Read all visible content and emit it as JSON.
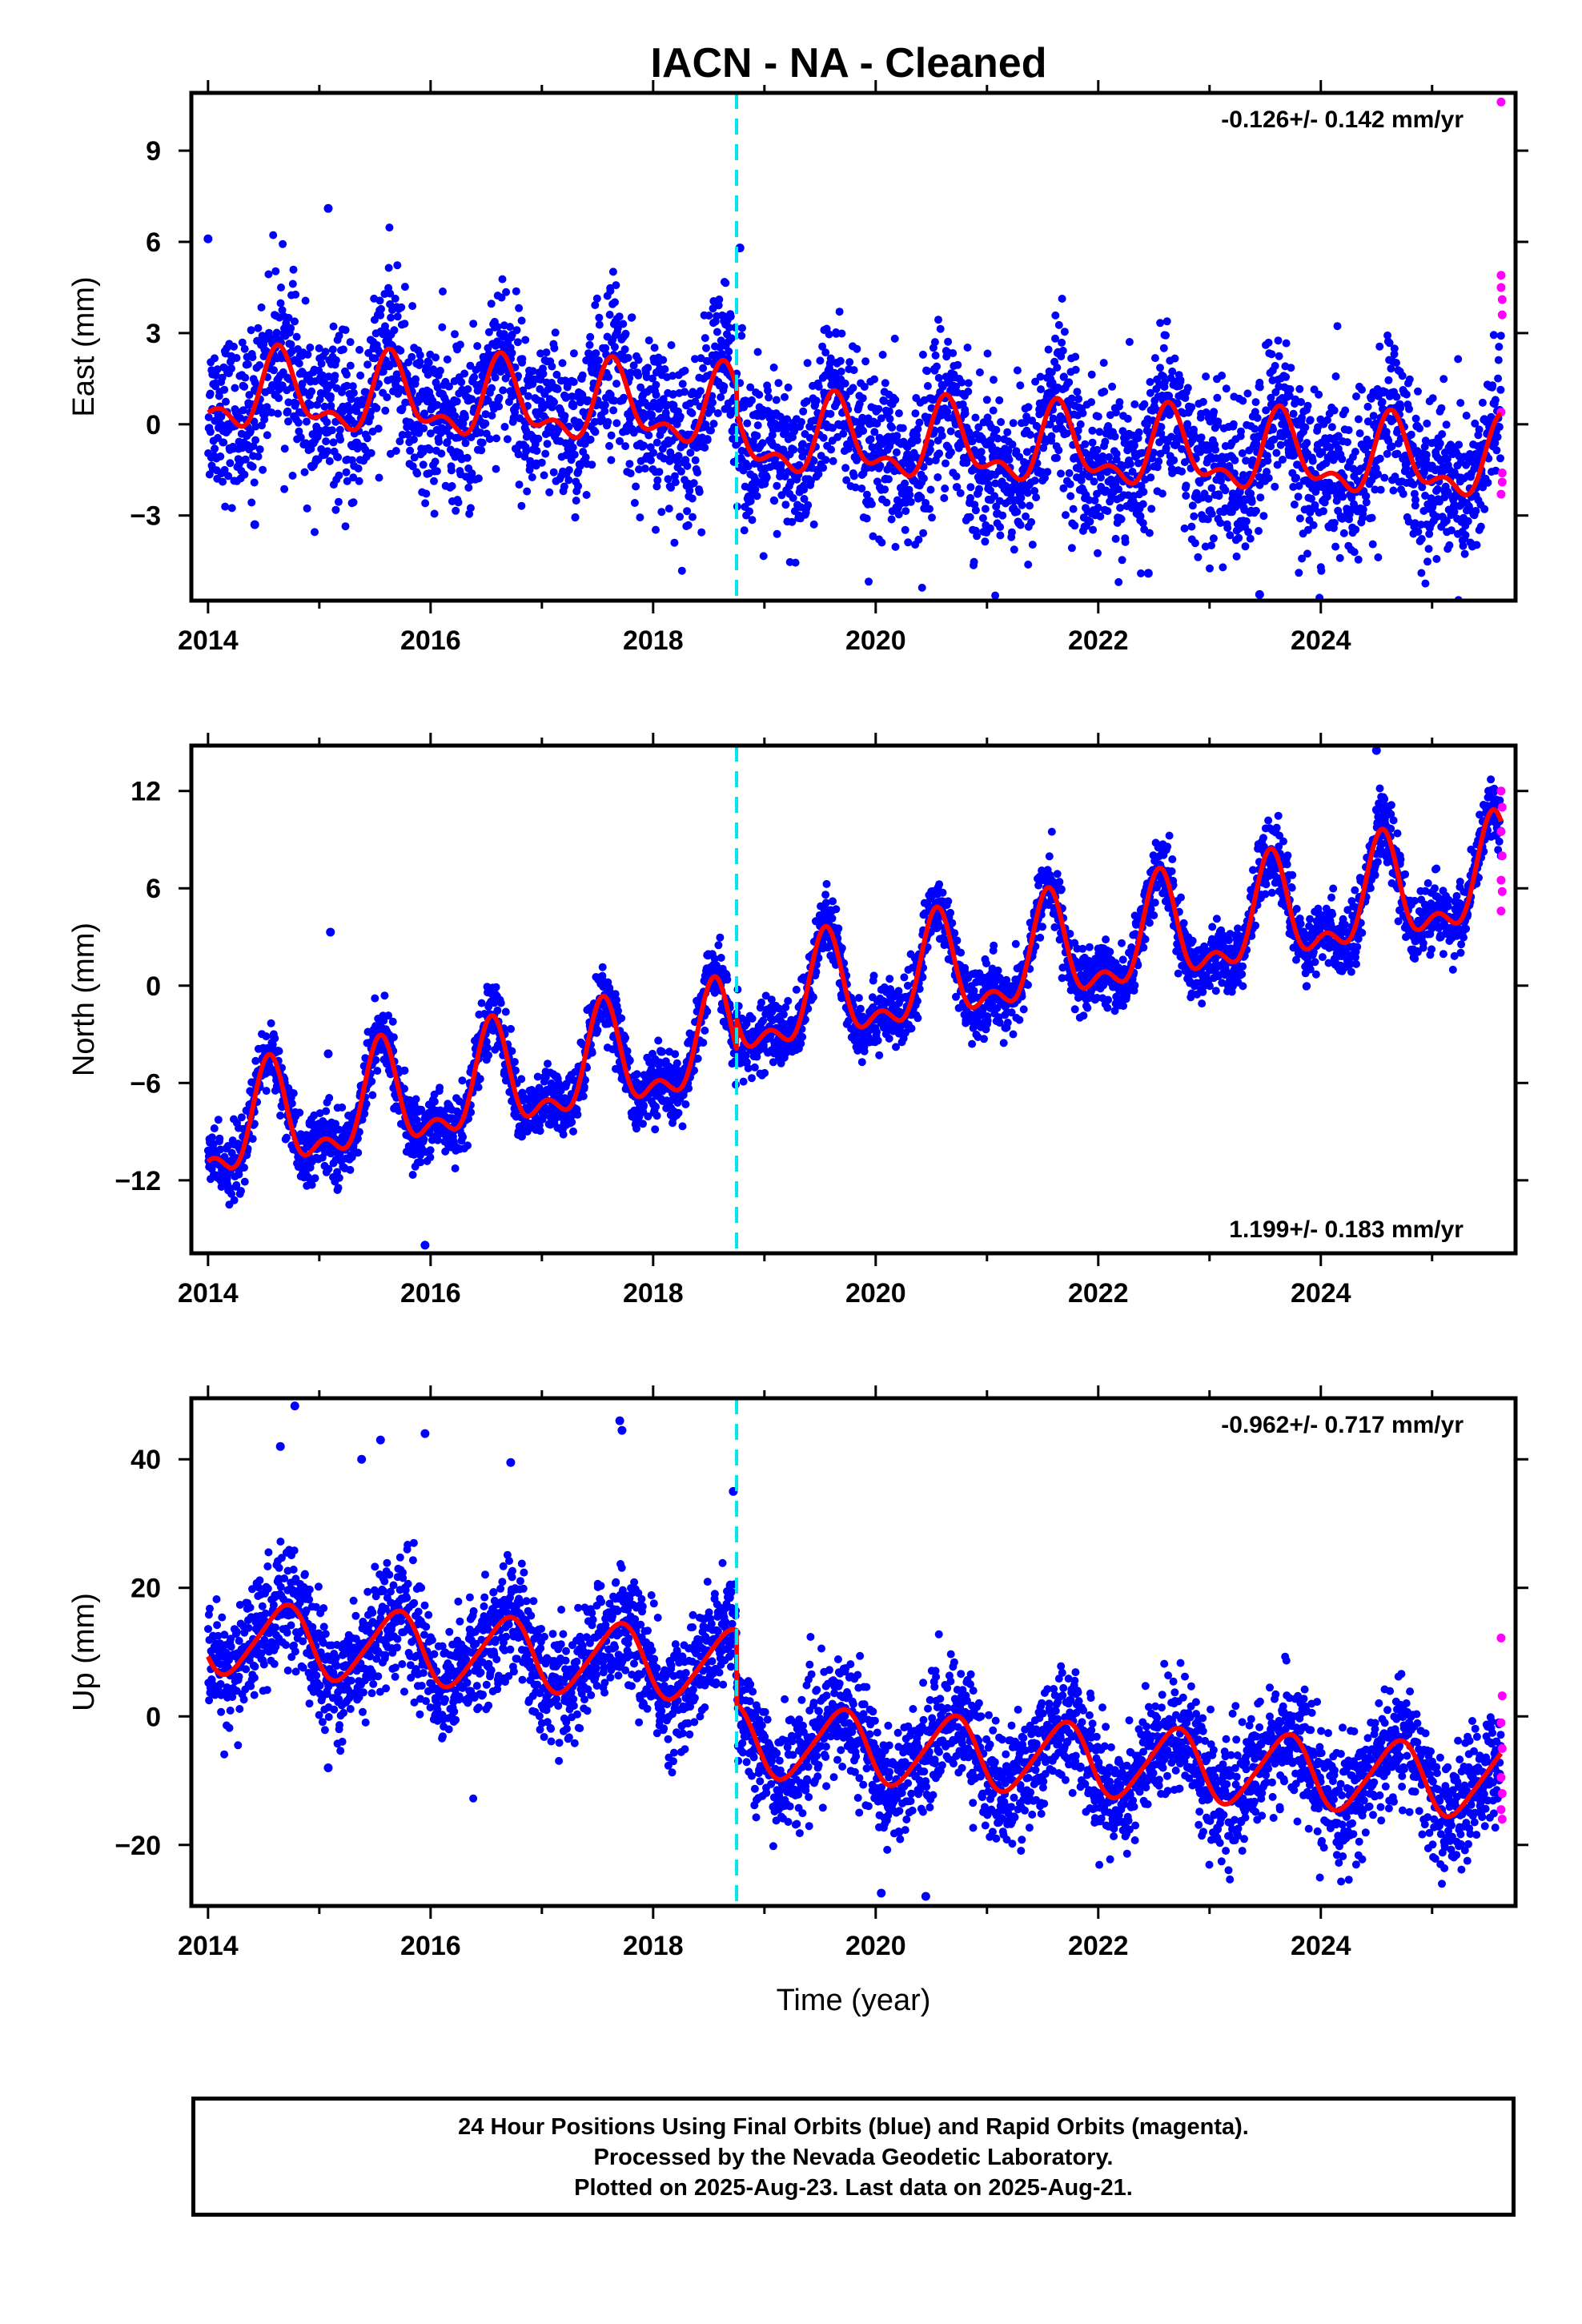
{
  "title": "IACN  - NA - Cleaned",
  "footer": {
    "line1": "24 Hour Positions Using Final Orbits (blue) and Rapid Orbits (magenta).",
    "line2": "Processed by the Nevada Geodetic Laboratory.",
    "line3": "Plotted on 2025-Aug-23. Last data on 2025-Aug-21."
  },
  "colors": {
    "final_orbits": "#0000ff",
    "rapid_orbits": "#ff00ff",
    "model_fit": "#ff0000",
    "event_line": "#00e5ee"
  },
  "chart_data": [
    {
      "type": "scatter",
      "component": "east",
      "ylabel": "East (mm)",
      "xlabel": "",
      "xlim": [
        2013.85,
        2025.75
      ],
      "ylim": [
        -5.8,
        10.9
      ],
      "x_ticks": [
        2014,
        2016,
        2018,
        2020,
        2022,
        2024
      ],
      "y_ticks": [
        -3,
        0,
        3,
        6,
        9
      ],
      "rate_label": "-0.126+/- 0.142 mm/yr",
      "rate_label_position": "top-right",
      "event_line_x": 2018.75,
      "model": {
        "segments": [
          {
            "start": 2014.0,
            "end": 2018.75,
            "offset": 1.0
          },
          {
            "start": 2018.75,
            "end": 2025.62,
            "offset": 0.13
          }
        ],
        "rate_mm_per_yr": -0.126,
        "annual_amplitude": 1.1,
        "annual_peak": 0.65,
        "semiannual_amplitude": 0.6,
        "semiannual_peak": 0.62
      },
      "scatter": {
        "noise": 1.3,
        "points_per_year": 340
      },
      "outliers": [
        {
          "x": 2014.0,
          "y": 6.1
        },
        {
          "x": 2015.08,
          "y": 7.1
        },
        {
          "x": 2018.78,
          "y": 5.8
        },
        {
          "x": 2014.42,
          "y": -3.3
        },
        {
          "x": 2022.45,
          "y": -4.9
        },
        {
          "x": 2023.45,
          "y": -5.6
        }
      ],
      "rapid_points": [
        {
          "x": 2025.62,
          "y": 10.6
        },
        {
          "x": 2025.62,
          "y": 4.9
        },
        {
          "x": 2025.62,
          "y": 4.5
        },
        {
          "x": 2025.63,
          "y": 4.1
        },
        {
          "x": 2025.63,
          "y": 3.6
        },
        {
          "x": 2025.62,
          "y": 0.4
        },
        {
          "x": 2025.63,
          "y": -1.6
        },
        {
          "x": 2025.62,
          "y": -2.3
        },
        {
          "x": 2025.63,
          "y": -1.9
        }
      ]
    },
    {
      "type": "scatter",
      "component": "north",
      "ylabel": "North (mm)",
      "xlabel": "",
      "xlim": [
        2013.85,
        2025.75
      ],
      "ylim": [
        -16.5,
        14.8
      ],
      "x_ticks": [
        2014,
        2016,
        2018,
        2020,
        2022,
        2024
      ],
      "y_ticks": [
        -12,
        -6,
        0,
        6,
        12
      ],
      "rate_label": "1.199+/- 0.183 mm/yr",
      "rate_label_position": "bottom-right",
      "event_line_x": 2018.75,
      "model": {
        "segments": [
          {
            "start": 2014.0,
            "end": 2018.75,
            "offset": -9.3
          },
          {
            "start": 2018.75,
            "end": 2025.62,
            "offset": -7.4
          }
        ],
        "rate_mm_per_yr": 1.199,
        "annual_amplitude": 2.9,
        "annual_peak": 0.55,
        "semiannual_amplitude": 1.5,
        "semiannual_peak": 0.55
      },
      "scatter": {
        "noise": 1.0,
        "points_per_year": 340
      },
      "outliers": [
        {
          "x": 2015.1,
          "y": 3.3
        },
        {
          "x": 2015.08,
          "y": -4.2
        },
        {
          "x": 2024.5,
          "y": 14.5
        },
        {
          "x": 2015.95,
          "y": -16.0
        }
      ],
      "rapid_points": [
        {
          "x": 2025.62,
          "y": 12.0
        },
        {
          "x": 2025.63,
          "y": 11.0
        },
        {
          "x": 2025.62,
          "y": 9.5
        },
        {
          "x": 2025.63,
          "y": 8.0
        },
        {
          "x": 2025.62,
          "y": 6.5
        },
        {
          "x": 2025.63,
          "y": 5.8
        },
        {
          "x": 2025.62,
          "y": 4.6
        }
      ]
    },
    {
      "type": "scatter",
      "component": "up",
      "ylabel": "Up (mm)",
      "xlabel": "Time (year)",
      "xlim": [
        2013.85,
        2025.75
      ],
      "ylim": [
        -29.5,
        49.5
      ],
      "x_ticks": [
        2014,
        2016,
        2018,
        2020,
        2022,
        2024
      ],
      "y_ticks": [
        -20,
        0,
        20,
        40
      ],
      "rate_label": "-0.962+/- 0.717 mm/yr",
      "rate_label_position": "top-right",
      "event_line_x": 2018.75,
      "model": {
        "segments": [
          {
            "start": 2014.0,
            "end": 2018.75,
            "offset": 12.3
          },
          {
            "start": 2018.75,
            "end": 2025.62,
            "offset": 0.8
          }
        ],
        "rate_mm_per_yr": -0.962,
        "annual_amplitude": 5.5,
        "annual_peak": 0.68,
        "semiannual_amplitude": 0.8,
        "semiannual_peak": 0.3
      },
      "scatter": {
        "noise": 4.5,
        "points_per_year": 340
      },
      "outliers": [
        {
          "x": 2014.78,
          "y": 48.3
        },
        {
          "x": 2017.7,
          "y": 46.0
        },
        {
          "x": 2017.72,
          "y": 44.5
        },
        {
          "x": 2015.55,
          "y": 43.0
        },
        {
          "x": 2015.95,
          "y": 44.0
        },
        {
          "x": 2015.38,
          "y": 40.0
        },
        {
          "x": 2016.72,
          "y": 39.5
        },
        {
          "x": 2014.65,
          "y": 42.0
        },
        {
          "x": 2020.05,
          "y": -27.5
        },
        {
          "x": 2020.45,
          "y": -28.0
        },
        {
          "x": 2018.72,
          "y": 35.0
        },
        {
          "x": 2015.08,
          "y": -8.0
        }
      ],
      "rapid_points": [
        {
          "x": 2025.62,
          "y": 12.2
        },
        {
          "x": 2025.63,
          "y": 3.2
        },
        {
          "x": 2025.62,
          "y": -1.0
        },
        {
          "x": 2025.63,
          "y": -5.0
        },
        {
          "x": 2025.62,
          "y": -9.5
        },
        {
          "x": 2025.63,
          "y": -12.0
        },
        {
          "x": 2025.62,
          "y": -14.5
        },
        {
          "x": 2025.63,
          "y": -16.0
        }
      ]
    }
  ]
}
